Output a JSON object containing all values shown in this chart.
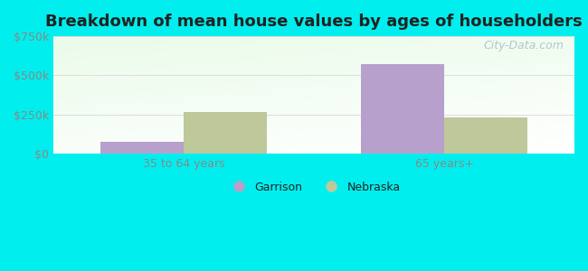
{
  "title": "Breakdown of mean house values by ages of householders",
  "categories": [
    "35 to 64 years",
    "65 years+"
  ],
  "garrison_values": [
    75000,
    570000
  ],
  "nebraska_values": [
    265000,
    230000
  ],
  "garrison_color": "#b8a0cc",
  "nebraska_color": "#bec89a",
  "ylim": [
    0,
    750000
  ],
  "yticks": [
    0,
    250000,
    500000,
    750000
  ],
  "ytick_labels": [
    "$0",
    "$250k",
    "$500k",
    "$750k"
  ],
  "background_color": "#00eeee",
  "bar_width": 0.32,
  "legend_labels": [
    "Garrison",
    "Nebraska"
  ],
  "watermark": "City-Data.com",
  "title_fontsize": 13,
  "tick_color": "#888888",
  "label_color": "#444444"
}
